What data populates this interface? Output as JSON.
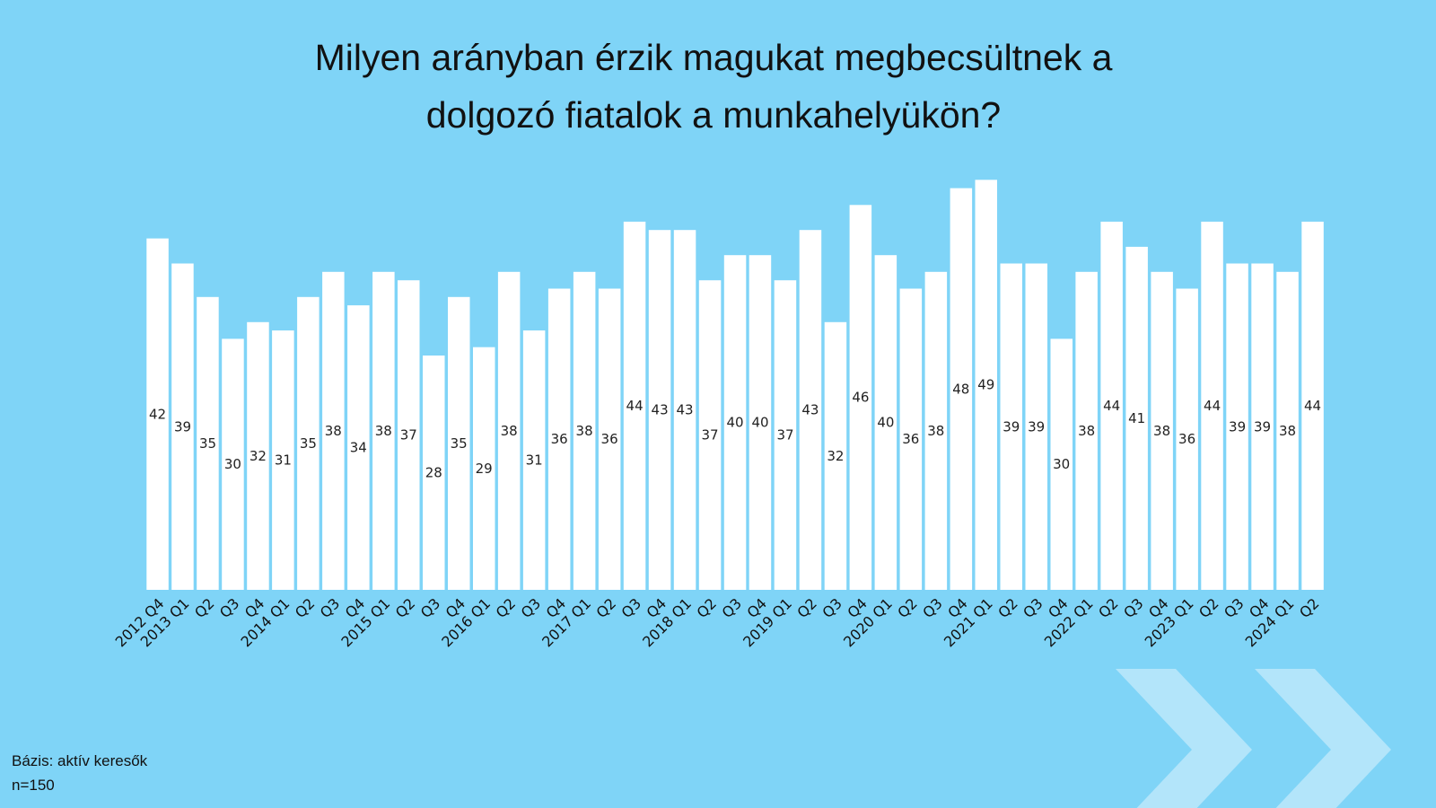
{
  "title_line1": "Milyen arányban érzik magukat megbecsültnek a",
  "title_line2": "dolgozó fiatalok a munkahelyükön?",
  "footnote": {
    "line1": "Bázis: aktív keresők",
    "line2": "n=150"
  },
  "colors": {
    "background": "#7fd4f7",
    "bar": "#ffffff",
    "chevron": "#b3e5fa"
  },
  "chart_data": {
    "type": "bar",
    "title": "Milyen arányban érzik magukat megbecsültnek a dolgozó fiatalok a munkahelyükön?",
    "xlabel": "",
    "ylabel": "",
    "grid": false,
    "legend": "none",
    "categories": [
      "2012 Q4",
      "2013 Q1",
      "Q2",
      "Q3",
      "Q4",
      "2014 Q1",
      "Q2",
      "Q3",
      "Q4",
      "2015 Q1",
      "Q2",
      "Q3",
      "Q4",
      "2016 Q1",
      "Q2",
      "Q3",
      "Q4",
      "2017 Q1",
      "Q2",
      "Q3",
      "Q4",
      "2018 Q1",
      "Q2",
      "Q3",
      "Q4",
      "2019 Q1",
      "Q2",
      "Q3",
      "Q4",
      "2020 Q1",
      "Q2",
      "Q3",
      "Q4",
      "2021 Q1",
      "Q2",
      "Q3",
      "Q4",
      "2022 Q1",
      "Q2",
      "Q3",
      "Q4",
      "2023 Q1",
      "Q2",
      "Q3",
      "Q4",
      "2024 Q1",
      "Q2"
    ],
    "values": [
      42,
      39,
      35,
      30,
      32,
      31,
      35,
      38,
      34,
      38,
      37,
      28,
      35,
      29,
      38,
      31,
      36,
      38,
      36,
      44,
      43,
      43,
      37,
      40,
      40,
      37,
      43,
      32,
      46,
      40,
      36,
      38,
      48,
      49,
      39,
      39,
      30,
      38,
      44,
      41,
      38,
      36,
      44,
      39,
      39,
      38,
      44
    ],
    "ylim": [
      0,
      50
    ]
  }
}
